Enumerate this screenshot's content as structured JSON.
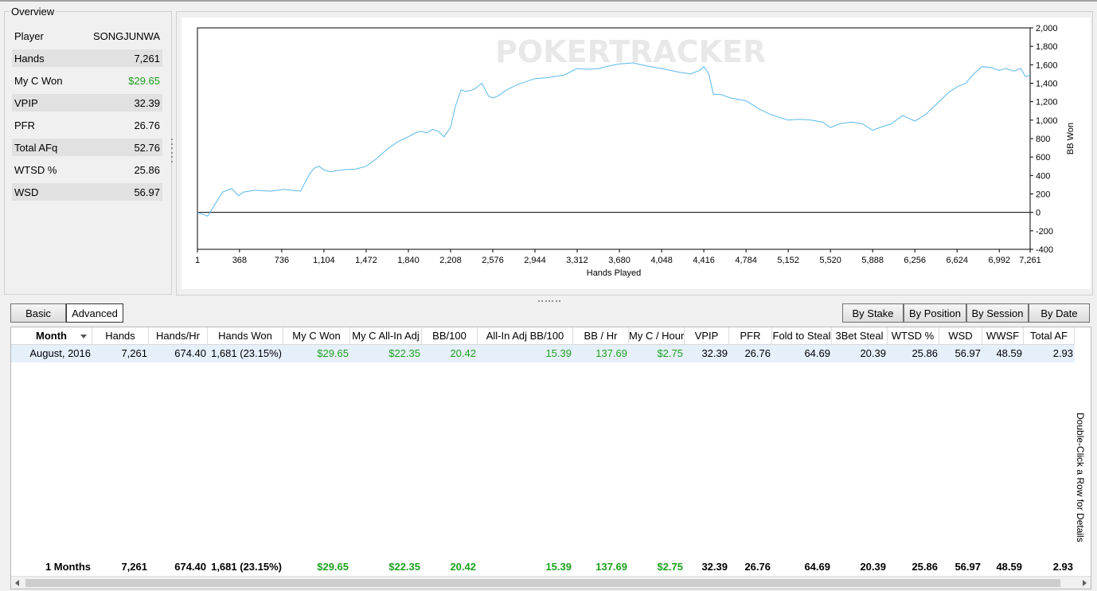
{
  "overview": {
    "title": "Overview",
    "rows": [
      {
        "label": "Player",
        "value": "SONGJUNWA"
      },
      {
        "label": "Hands",
        "value": "7,261"
      },
      {
        "label": "My C Won",
        "value": "$29.65"
      },
      {
        "label": "VPIP",
        "value": "32.39"
      },
      {
        "label": "PFR",
        "value": "26.76"
      },
      {
        "label": "Total AFq",
        "value": "52.76"
      },
      {
        "label": "WTSD %",
        "value": "25.86"
      },
      {
        "label": "WSD",
        "value": "56.97"
      }
    ]
  },
  "chart": {
    "watermark": "POKERTRACKER",
    "xlabel": "Hands Played",
    "ylabel": "BB Won",
    "line_color": "#5bb8e8"
  },
  "chart_data": {
    "type": "line",
    "xlabel": "Hands Played",
    "ylabel": "BB Won",
    "xlim": [
      1,
      7261
    ],
    "ylim": [
      -400,
      2000
    ],
    "x_ticks": [
      "1",
      "368",
      "736",
      "1,104",
      "1,472",
      "1,840",
      "2,208",
      "2,576",
      "2,944",
      "3,312",
      "3,680",
      "4,048",
      "4,416",
      "4,784",
      "5,152",
      "5,520",
      "5,888",
      "6,256",
      "6,624",
      "6,992",
      "7,261"
    ],
    "y_ticks": [
      "2,000",
      "1,800",
      "1,600",
      "1,400",
      "1,200",
      "1,000",
      "800",
      "600",
      "400",
      "200",
      "0",
      "-200",
      "-400"
    ],
    "series": [
      {
        "x": [
          1,
          90,
          150,
          220,
          300,
          360,
          400,
          500,
          640,
          760,
          820,
          900,
          980,
          1020,
          1060,
          1104,
          1160,
          1250,
          1380,
          1472,
          1560,
          1650,
          1740,
          1840,
          1900,
          1950,
          2000,
          2050,
          2100,
          2150,
          2208,
          2250,
          2300,
          2340,
          2380,
          2420,
          2480,
          2540,
          2576,
          2620,
          2700,
          2800,
          2944,
          3050,
          3200,
          3312,
          3400,
          3500,
          3600,
          3680,
          3800,
          3950,
          4048,
          4200,
          4300,
          4380,
          4416,
          4460,
          4500,
          4560,
          4650,
          4784,
          4900,
          5000,
          5152,
          5250,
          5350,
          5450,
          5520,
          5600,
          5700,
          5800,
          5888,
          5950,
          6050,
          6150,
          6256,
          6350,
          6450,
          6550,
          6624,
          6700,
          6760,
          6840,
          6920,
          6992,
          7050,
          7120,
          7180,
          7220,
          7261
        ],
        "y": [
          0,
          -40,
          80,
          220,
          260,
          180,
          220,
          240,
          230,
          250,
          240,
          230,
          420,
          480,
          500,
          460,
          440,
          460,
          470,
          500,
          580,
          680,
          760,
          820,
          860,
          880,
          860,
          900,
          880,
          820,
          920,
          1150,
          1330,
          1310,
          1320,
          1340,
          1400,
          1260,
          1240,
          1260,
          1330,
          1390,
          1450,
          1460,
          1490,
          1560,
          1550,
          1560,
          1590,
          1610,
          1620,
          1580,
          1560,
          1520,
          1500,
          1540,
          1580,
          1500,
          1280,
          1280,
          1240,
          1210,
          1120,
          1060,
          1000,
          1010,
          1000,
          980,
          920,
          960,
          980,
          960,
          890,
          920,
          960,
          1050,
          990,
          1060,
          1180,
          1300,
          1360,
          1400,
          1490,
          1580,
          1570,
          1540,
          1560,
          1530,
          1560,
          1470,
          1490
        ]
      }
    ]
  },
  "toolbar": {
    "basic_label": "Basic",
    "advanced_label": "Advanced",
    "by_stake": "By Stake",
    "by_position": "By Position",
    "by_session": "By Session",
    "by_date": "By Date"
  },
  "grid": {
    "columns": [
      "Month",
      "Hands",
      "Hands/Hr",
      "Hands Won",
      "My C Won",
      "My C All-In Adj",
      "BB/100",
      "All-In Adj BB/100",
      "BB / Hr",
      "My C / Hour",
      "VPIP",
      "PFR",
      "Fold to Steal",
      "3Bet Steal",
      "WTSD %",
      "WSD",
      "WWSF",
      "Total AF"
    ],
    "row": [
      "August, 2016",
      "7,261",
      "674.40",
      "1,681 (23.15%)",
      "$29.65",
      "$22.35",
      "20.42",
      "15.39",
      "137.69",
      "$2.75",
      "32.39",
      "26.76",
      "64.69",
      "20.39",
      "25.86",
      "56.97",
      "48.59",
      "2.93"
    ],
    "total": [
      "1 Months",
      "7,261",
      "674.40",
      "1,681 (23.15%)",
      "$29.65",
      "$22.35",
      "20.42",
      "15.39",
      "137.69",
      "$2.75",
      "32.39",
      "26.76",
      "64.69",
      "20.39",
      "25.86",
      "56.97",
      "48.59",
      "2.93"
    ],
    "green_columns": [
      4,
      5,
      6,
      7,
      8,
      9
    ],
    "side_hint": "Double-Click a Row for Details"
  }
}
